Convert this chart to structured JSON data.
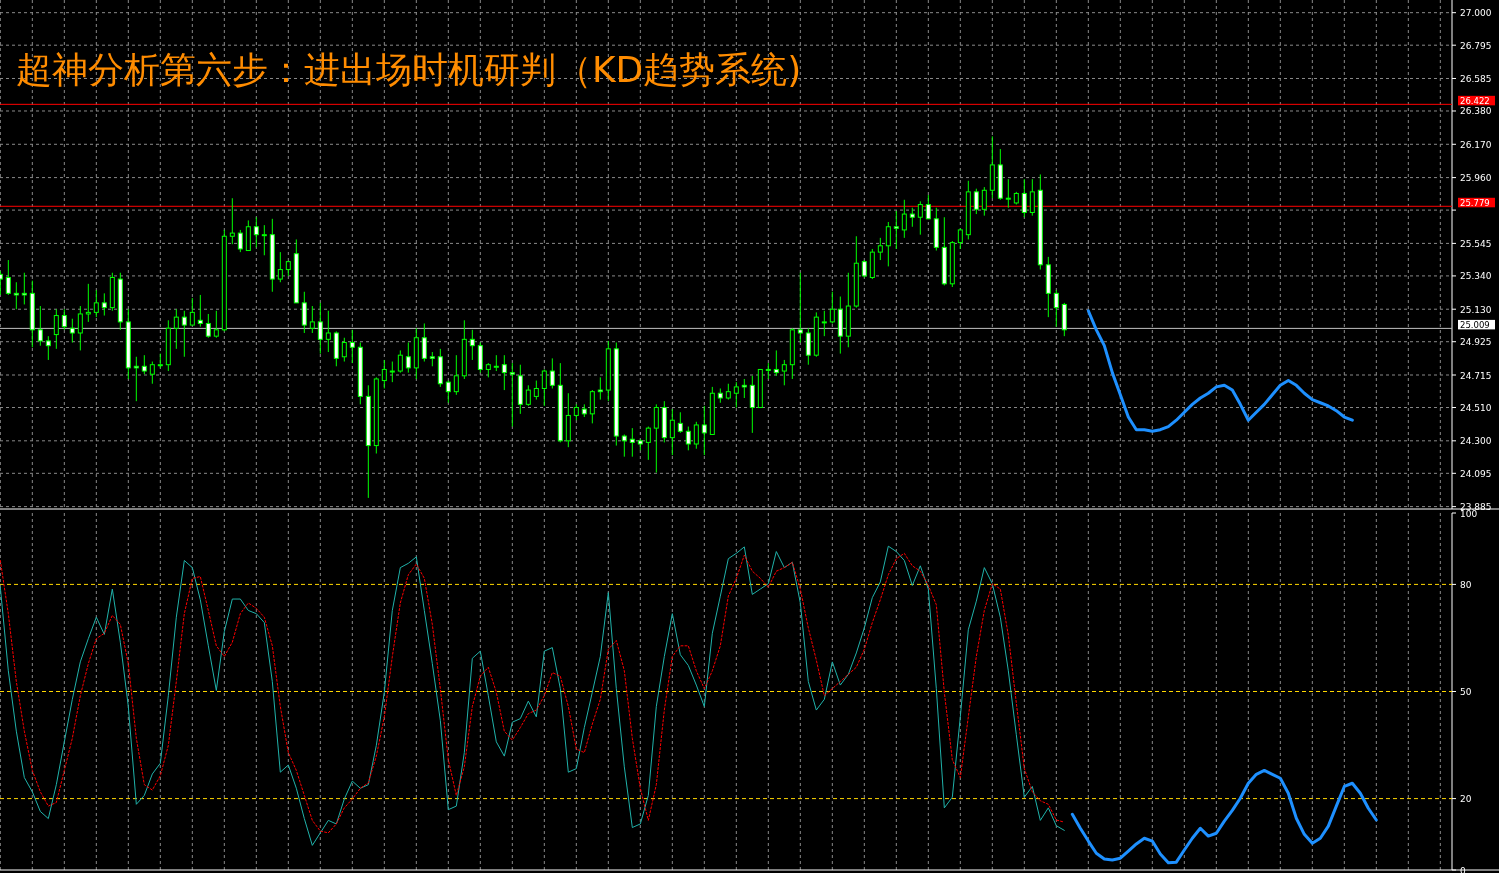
{
  "chart_data": [
    {
      "type": "candlestick",
      "title": "超神分析第六步：进出场时机研判（KD趋势系统)",
      "grid": true,
      "tick_labels": "y",
      "categories": [
        null,
        null,
        null,
        null,
        null,
        null,
        null,
        null,
        null,
        null,
        null,
        null,
        null,
        null,
        null,
        null,
        null,
        null,
        null,
        null,
        null,
        null,
        null,
        null,
        null,
        null,
        null,
        null,
        null,
        null,
        null,
        null,
        null,
        null,
        null,
        null,
        null,
        null,
        null,
        null,
        null,
        null,
        null,
        null,
        null,
        null,
        null,
        null,
        null,
        null,
        null,
        null,
        null,
        null,
        null,
        null,
        null,
        null,
        null,
        null,
        null,
        null,
        null,
        null,
        null,
        null,
        null,
        null,
        null,
        null,
        null,
        null,
        null,
        null,
        null,
        null,
        null,
        null,
        null,
        null,
        null,
        null,
        null,
        null,
        null,
        null,
        null,
        null,
        null,
        null,
        null,
        null,
        null,
        null,
        null,
        null,
        null,
        null,
        null,
        null,
        null,
        null,
        null,
        null,
        null,
        null,
        null,
        null,
        null,
        null,
        null,
        null,
        null,
        null,
        null,
        null,
        null,
        null,
        null,
        null,
        null,
        null,
        null,
        null,
        null,
        null,
        null,
        null,
        null,
        null,
        null,
        null,
        null,
        null,
        null,
        null,
        null,
        null,
        null,
        null,
        null,
        null,
        null,
        null,
        null,
        null,
        null,
        null,
        null,
        null,
        null,
        null,
        null,
        null,
        null,
        null,
        null,
        null,
        null,
        null,
        null,
        null,
        null,
        null,
        null,
        null,
        null,
        null,
        null,
        null,
        null,
        null,
        null,
        null,
        null,
        null,
        null,
        null,
        null,
        null,
        null,
        null
      ],
      "ylim": [
        23.87,
        27.08
      ],
      "yticks": [
        {
          "value": 27.0,
          "label": "27.000"
        },
        {
          "value": 26.795,
          "label": "26.795"
        },
        {
          "value": 26.585,
          "label": "26.585"
        },
        {
          "value": 26.38,
          "label": "26.380"
        },
        {
          "value": 26.17,
          "label": "26.170"
        },
        {
          "value": 25.96,
          "label": "25.960"
        },
        {
          "value": 25.755,
          "label": null
        },
        {
          "value": 25.545,
          "label": "25.545"
        },
        {
          "value": 25.34,
          "label": "25.340"
        },
        {
          "value": 25.13,
          "label": "25.130"
        },
        {
          "value": 24.925,
          "label": "24.925"
        },
        {
          "value": 24.715,
          "label": "24.715"
        },
        {
          "value": 24.51,
          "label": "24.510"
        },
        {
          "value": 24.3,
          "label": "24.300"
        },
        {
          "value": 24.095,
          "label": "24.095"
        },
        {
          "value": 23.885,
          "label": "23.885"
        }
      ],
      "ref_lines": [
        {
          "axis": "y",
          "value": 26.422,
          "label": "26.422",
          "color": "#ff0000"
        },
        {
          "axis": "y",
          "value": 25.779,
          "label": "25.779",
          "color": "#ff0000"
        },
        {
          "axis": "y",
          "value": 25.009,
          "label": "25.009",
          "color": "#c0c0c0"
        }
      ],
      "ohlc": [
        [
          25.35,
          25.37,
          25.22,
          25.32
        ],
        [
          25.33,
          25.44,
          25.22,
          25.23
        ],
        [
          25.23,
          25.3,
          25.13,
          25.22
        ],
        [
          25.23,
          25.36,
          25.16,
          25.22
        ],
        [
          25.23,
          25.31,
          24.89,
          25.0
        ],
        [
          25.0,
          25.15,
          24.9,
          24.93
        ],
        [
          24.93,
          24.96,
          24.81,
          24.9
        ],
        [
          24.97,
          25.13,
          24.88,
          25.09
        ],
        [
          25.09,
          25.13,
          25.0,
          25.02
        ],
        [
          25.01,
          25.07,
          24.92,
          24.98
        ],
        [
          24.98,
          25.15,
          24.87,
          25.1
        ],
        [
          25.1,
          25.29,
          25.05,
          25.11
        ],
        [
          25.11,
          25.25,
          25.08,
          25.17
        ],
        [
          25.17,
          25.23,
          25.09,
          25.14
        ],
        [
          25.14,
          25.36,
          25.12,
          25.33
        ],
        [
          25.32,
          25.36,
          25.0,
          25.05
        ],
        [
          25.05,
          25.13,
          24.69,
          24.76
        ],
        [
          24.77,
          24.83,
          24.55,
          24.76
        ],
        [
          24.77,
          24.84,
          24.72,
          24.74
        ],
        [
          24.72,
          24.8,
          24.66,
          24.78
        ],
        [
          24.78,
          24.85,
          24.76,
          24.78
        ],
        [
          24.78,
          25.06,
          24.74,
          25.01
        ],
        [
          25.01,
          25.13,
          24.88,
          25.08
        ],
        [
          25.08,
          25.12,
          24.83,
          25.03
        ],
        [
          25.03,
          25.2,
          25.03,
          25.11
        ],
        [
          25.06,
          25.22,
          25.02,
          25.04
        ],
        [
          25.04,
          25.1,
          24.95,
          24.96
        ],
        [
          24.96,
          25.12,
          24.95,
          25.0
        ],
        [
          25.0,
          25.63,
          24.99,
          25.59
        ],
        [
          25.59,
          25.83,
          25.54,
          25.61
        ],
        [
          25.61,
          25.63,
          25.49,
          25.51
        ],
        [
          25.5,
          25.69,
          25.5,
          25.65
        ],
        [
          25.65,
          25.71,
          25.52,
          25.6
        ],
        [
          25.6,
          25.66,
          25.47,
          25.6
        ],
        [
          25.6,
          25.7,
          25.24,
          25.32
        ],
        [
          25.32,
          25.49,
          25.3,
          25.38
        ],
        [
          25.38,
          25.43,
          25.34,
          25.43
        ],
        [
          25.48,
          25.57,
          25.17,
          25.17
        ],
        [
          25.17,
          25.24,
          24.98,
          25.03
        ],
        [
          25.01,
          25.15,
          24.98,
          25.05
        ],
        [
          25.05,
          25.17,
          24.85,
          24.94
        ],
        [
          24.94,
          25.12,
          24.86,
          24.98
        ],
        [
          24.98,
          24.99,
          24.77,
          24.82
        ],
        [
          24.83,
          24.95,
          24.8,
          24.92
        ],
        [
          24.92,
          25.0,
          24.79,
          24.89
        ],
        [
          24.89,
          24.92,
          24.53,
          24.58
        ],
        [
          24.58,
          24.65,
          23.94,
          24.27
        ],
        [
          24.27,
          24.7,
          24.22,
          24.69
        ],
        [
          24.68,
          24.81,
          24.63,
          24.75
        ],
        [
          24.74,
          24.8,
          24.67,
          24.74
        ],
        [
          24.74,
          24.87,
          24.73,
          24.84
        ],
        [
          24.83,
          24.92,
          24.73,
          24.76
        ],
        [
          24.76,
          25.01,
          24.69,
          24.95
        ],
        [
          24.95,
          25.04,
          24.8,
          24.82
        ],
        [
          24.83,
          24.86,
          24.77,
          24.82
        ],
        [
          24.83,
          24.88,
          24.64,
          24.66
        ],
        [
          24.67,
          24.68,
          24.54,
          24.61
        ],
        [
          24.61,
          24.84,
          24.59,
          24.71
        ],
        [
          24.71,
          25.06,
          24.69,
          24.94
        ],
        [
          24.94,
          25.0,
          24.81,
          24.9
        ],
        [
          24.9,
          24.92,
          24.73,
          24.75
        ],
        [
          24.75,
          24.79,
          24.7,
          24.78
        ],
        [
          24.77,
          24.84,
          24.74,
          24.77
        ],
        [
          24.78,
          24.84,
          24.62,
          24.73
        ],
        [
          24.73,
          24.79,
          24.39,
          24.72
        ],
        [
          24.71,
          24.78,
          24.47,
          24.53
        ],
        [
          24.53,
          24.65,
          24.52,
          24.62
        ],
        [
          24.58,
          24.68,
          24.56,
          24.63
        ],
        [
          24.63,
          24.75,
          24.52,
          24.74
        ],
        [
          24.74,
          24.82,
          24.63,
          24.65
        ],
        [
          24.65,
          24.79,
          24.29,
          24.3
        ],
        [
          24.3,
          24.6,
          24.26,
          24.46
        ],
        [
          24.46,
          24.53,
          24.43,
          24.51
        ],
        [
          24.5,
          24.53,
          24.45,
          24.47
        ],
        [
          24.47,
          24.62,
          24.41,
          24.61
        ],
        [
          24.62,
          24.7,
          24.56,
          24.61
        ],
        [
          24.62,
          24.93,
          24.55,
          24.88
        ],
        [
          24.88,
          24.92,
          24.27,
          24.33
        ],
        [
          24.33,
          24.34,
          24.2,
          24.3
        ],
        [
          24.31,
          24.38,
          24.2,
          24.29
        ],
        [
          24.3,
          24.31,
          24.24,
          24.28
        ],
        [
          24.29,
          24.39,
          24.18,
          24.38
        ],
        [
          24.38,
          24.53,
          24.1,
          24.51
        ],
        [
          24.51,
          24.55,
          24.29,
          24.32
        ],
        [
          24.32,
          24.5,
          24.21,
          24.43
        ],
        [
          24.41,
          24.48,
          24.35,
          24.36
        ],
        [
          24.36,
          24.39,
          24.24,
          24.28
        ],
        [
          24.28,
          24.42,
          24.25,
          24.4
        ],
        [
          24.4,
          24.52,
          24.21,
          24.35
        ],
        [
          24.34,
          24.64,
          24.34,
          24.6
        ],
        [
          24.6,
          24.63,
          24.54,
          24.57
        ],
        [
          24.57,
          24.66,
          24.56,
          24.61
        ],
        [
          24.6,
          24.67,
          24.51,
          24.64
        ],
        [
          24.65,
          24.69,
          24.57,
          24.64
        ],
        [
          24.65,
          24.71,
          24.35,
          24.51
        ],
        [
          24.51,
          24.75,
          24.51,
          24.75
        ],
        [
          24.75,
          24.79,
          24.69,
          24.75
        ],
        [
          24.75,
          24.87,
          24.71,
          24.73
        ],
        [
          24.74,
          24.81,
          24.65,
          24.78
        ],
        [
          24.78,
          25.01,
          24.69,
          25.0
        ],
        [
          25.0,
          25.36,
          24.92,
          24.98
        ],
        [
          24.98,
          25.01,
          24.78,
          24.84
        ],
        [
          24.84,
          25.11,
          24.83,
          25.08
        ],
        [
          25.05,
          25.12,
          24.96,
          25.05
        ],
        [
          25.05,
          25.24,
          25.04,
          25.13
        ],
        [
          25.13,
          25.21,
          24.85,
          24.96
        ],
        [
          24.96,
          25.36,
          24.89,
          25.15
        ],
        [
          25.15,
          25.59,
          25.14,
          25.42
        ],
        [
          25.43,
          25.44,
          25.33,
          25.34
        ],
        [
          25.33,
          25.51,
          25.32,
          25.49
        ],
        [
          25.49,
          25.58,
          25.44,
          25.53
        ],
        [
          25.53,
          25.68,
          25.4,
          25.65
        ],
        [
          25.65,
          25.75,
          25.51,
          25.64
        ],
        [
          25.63,
          25.82,
          25.58,
          25.73
        ],
        [
          25.73,
          25.77,
          25.65,
          25.71
        ],
        [
          25.71,
          25.81,
          25.6,
          25.79
        ],
        [
          25.79,
          25.85,
          25.7,
          25.7
        ],
        [
          25.7,
          25.77,
          25.5,
          25.52
        ],
        [
          25.52,
          25.71,
          25.28,
          25.29
        ],
        [
          25.29,
          25.56,
          25.27,
          25.55
        ],
        [
          25.55,
          25.64,
          25.51,
          25.63
        ],
        [
          25.6,
          25.94,
          25.57,
          25.87
        ],
        [
          25.87,
          25.89,
          25.73,
          25.76
        ],
        [
          25.76,
          25.9,
          25.72,
          25.88
        ],
        [
          25.88,
          26.22,
          25.83,
          26.04
        ],
        [
          26.04,
          26.14,
          25.82,
          25.83
        ],
        [
          25.83,
          25.95,
          25.77,
          25.83
        ],
        [
          25.8,
          25.87,
          25.79,
          25.86
        ],
        [
          25.86,
          25.95,
          25.71,
          25.74
        ],
        [
          25.74,
          25.95,
          25.72,
          25.87
        ],
        [
          25.88,
          25.98,
          25.38,
          25.41
        ],
        [
          25.41,
          25.46,
          25.08,
          25.23
        ],
        [
          25.23,
          25.25,
          25.02,
          25.14
        ],
        [
          25.16,
          25.17,
          24.96,
          25.0
        ],
        null,
        null,
        null,
        null,
        null,
        null,
        null,
        null,
        null,
        null,
        null,
        null,
        null,
        null,
        null,
        null,
        null,
        null,
        null,
        null,
        null,
        null,
        null,
        null,
        null,
        null,
        null,
        null,
        null,
        null,
        null,
        null,
        null,
        null,
        null,
        null,
        null,
        null,
        null,
        null,
        null,
        null,
        null,
        null,
        null,
        null,
        null,
        null
      ],
      "series": [
        {
          "type": "line",
          "color": "#1e90ff",
          "values": [
            null,
            null,
            null,
            null,
            null,
            null,
            null,
            null,
            null,
            null,
            null,
            null,
            null,
            null,
            null,
            null,
            null,
            null,
            null,
            null,
            null,
            null,
            null,
            null,
            null,
            null,
            null,
            null,
            null,
            null,
            null,
            null,
            null,
            null,
            null,
            null,
            null,
            null,
            null,
            null,
            null,
            null,
            null,
            null,
            null,
            null,
            null,
            null,
            null,
            null,
            null,
            null,
            null,
            null,
            null,
            null,
            null,
            null,
            null,
            null,
            null,
            null,
            null,
            null,
            null,
            null,
            null,
            null,
            null,
            null,
            null,
            null,
            null,
            null,
            null,
            null,
            null,
            null,
            null,
            null,
            null,
            null,
            null,
            null,
            null,
            null,
            null,
            null,
            null,
            null,
            null,
            null,
            null,
            null,
            null,
            null,
            null,
            null,
            null,
            null,
            null,
            null,
            null,
            null,
            null,
            null,
            null,
            null,
            null,
            null,
            null,
            null,
            null,
            null,
            null,
            null,
            null,
            null,
            null,
            null,
            null,
            null,
            null,
            null,
            null,
            null,
            null,
            null,
            null,
            null,
            null,
            null,
            null,
            null,
            null,
            null,
            25.12,
            25.0,
            24.9,
            24.73,
            24.59,
            24.45,
            24.37,
            24.37,
            24.36,
            24.37,
            24.39,
            24.43,
            24.48,
            24.53,
            24.57,
            24.6,
            24.64,
            24.65,
            24.62,
            24.53,
            24.43,
            24.48,
            24.53,
            24.59,
            24.65,
            24.68,
            24.65,
            24.6,
            24.56,
            24.54,
            24.52,
            24.49,
            24.45,
            24.43,
            null,
            null,
            null,
            null,
            null,
            null,
            null,
            null,
            null,
            null,
            null,
            null
          ]
        }
      ]
    },
    {
      "type": "line",
      "grid": "x",
      "tick_labels": "y",
      "categories": [
        null,
        null,
        null,
        null,
        null,
        null,
        null,
        null,
        null,
        null,
        null,
        null,
        null,
        null,
        null,
        null,
        null,
        null,
        null,
        null,
        null,
        null,
        null,
        null,
        null,
        null,
        null,
        null,
        null,
        null,
        null,
        null,
        null,
        null,
        null,
        null,
        null,
        null,
        null,
        null,
        null,
        null,
        null,
        null,
        null,
        null,
        null,
        null,
        null,
        null,
        null,
        null,
        null,
        null,
        null,
        null,
        null,
        null,
        null,
        null,
        null,
        null,
        null,
        null,
        null,
        null,
        null,
        null,
        null,
        null,
        null,
        null,
        null,
        null,
        null,
        null,
        null,
        null,
        null,
        null,
        null,
        null,
        null,
        null,
        null,
        null,
        null,
        null,
        null,
        null,
        null,
        null,
        null,
        null,
        null,
        null,
        null,
        null,
        null,
        null,
        null,
        null,
        null,
        null,
        null,
        null,
        null,
        null,
        null,
        null,
        null,
        null,
        null,
        null,
        null,
        null,
        null,
        null,
        null,
        null,
        null,
        null,
        null,
        null,
        null,
        null,
        null,
        null,
        null,
        null,
        null,
        null,
        null,
        null,
        null,
        null,
        null,
        null,
        null,
        null,
        null,
        null,
        null,
        null,
        null,
        null,
        null,
        null,
        null,
        null,
        null,
        null,
        null,
        null,
        null,
        null,
        null,
        null,
        null,
        null,
        null,
        null,
        null,
        null,
        null,
        null,
        null,
        null,
        null,
        null,
        null,
        null,
        null,
        null,
        null,
        null,
        null,
        null,
        null,
        null,
        null,
        null
      ],
      "ylim": [
        0,
        100
      ],
      "yticks": [
        0,
        20,
        50,
        80,
        100
      ],
      "ref_lines": [
        {
          "axis": "y",
          "value": 20,
          "color": "#ffd700",
          "line_style": "dashed"
        },
        {
          "axis": "y",
          "value": 50,
          "color": "#ffd700",
          "line_style": "dashed"
        },
        {
          "axis": "y",
          "value": 80,
          "color": "#ffd700",
          "line_style": "dashed"
        }
      ],
      "series": [
        {
          "color": "#20b2aa",
          "line_style": "solid",
          "values": [
            79.2,
            55.8,
            38.9,
            25.9,
            21.9,
            16.4,
            14.4,
            23.9,
            35.9,
            47.8,
            58.3,
            64.8,
            70.8,
            66.0,
            78.7,
            63.8,
            45.8,
            18.4,
            20.9,
            26.9,
            29.9,
            48.8,
            70.8,
            86.7,
            84.7,
            75.7,
            62.8,
            50.3,
            66.8,
            75.9,
            75.9,
            72.7,
            71.8,
            69.3,
            52.8,
            27.4,
            29.4,
            22.9,
            14.4,
            6.9,
            10.4,
            13.9,
            12.9,
            19.9,
            24.9,
            22.9,
            23.9,
            34.9,
            49.8,
            72.7,
            84.7,
            85.9,
            87.7,
            72.7,
            57.8,
            41.9,
            16.9,
            17.9,
            32.9,
            59.3,
            61.3,
            48.8,
            35.9,
            31.9,
            41.4,
            42.4,
            47.3,
            42.9,
            61.3,
            62.3,
            50.8,
            27.4,
            28.4,
            39.9,
            49.8,
            59.8,
            77.7,
            50.8,
            28.9,
            11.9,
            12.9,
            20.9,
            45.8,
            59.8,
            71.8,
            60.3,
            57.3,
            51.8,
            45.8,
            66.3,
            76.7,
            87.2,
            88.7,
            90.5,
            77.2,
            78.7,
            80.2,
            89.2,
            84.7,
            86.2,
            74.8,
            52.8,
            44.8,
            47.8,
            58.3,
            51.8,
            54.8,
            60.8,
            67.8,
            76.3,
            80.7,
            90.7,
            89.2,
            86.7,
            79.7,
            85.2,
            78.7,
            50.8,
            17.4,
            20.4,
            42.9,
            67.3,
            75.3,
            84.7,
            80.2,
            70.8,
            55.8,
            37.9,
            20.4,
            23.4,
            13.9,
            17.4,
            12.4,
            11.1,
            null,
            null,
            null,
            null,
            null,
            null,
            null,
            null,
            null,
            null,
            null,
            null,
            null,
            null,
            null,
            null,
            null,
            null,
            null,
            null,
            null,
            null,
            null,
            null,
            null,
            null,
            null,
            null,
            null,
            null,
            null,
            null,
            null,
            null,
            null,
            null,
            null,
            null,
            null,
            null,
            null,
            null,
            null,
            null,
            null,
            null,
            null,
            null
          ]
        },
        {
          "color": "#ff0000",
          "line_style": "dotted",
          "values": [
            86.7,
            71.8,
            52.8,
            38.9,
            27.9,
            21.9,
            17.9,
            18.9,
            27.9,
            36.9,
            48.8,
            57.8,
            64.8,
            66.3,
            71.3,
            68.8,
            57.8,
            36.9,
            23.9,
            22.4,
            26.4,
            34.9,
            52.8,
            71.8,
            81.7,
            82.2,
            72.7,
            62.8,
            59.8,
            63.8,
            71.8,
            74.8,
            73.3,
            70.8,
            62.8,
            45.8,
            32.9,
            27.9,
            20.9,
            13.9,
            10.9,
            10.4,
            12.9,
            17.4,
            19.9,
            22.9,
            24.4,
            31.9,
            42.9,
            59.8,
            74.8,
            82.7,
            85.7,
            81.7,
            68.8,
            50.8,
            30.9,
            20.9,
            28.9,
            45.8,
            54.3,
            56.8,
            49.8,
            38.9,
            36.4,
            39.9,
            43.8,
            44.8,
            48.8,
            55.3,
            54.3,
            45.8,
            33.9,
            32.9,
            40.9,
            47.8,
            61.8,
            64.3,
            55.8,
            36.9,
            22.9,
            13.9,
            23.9,
            44.8,
            59.8,
            62.8,
            62.8,
            55.8,
            50.8,
            55.8,
            62.8,
            76.7,
            81.7,
            88.2,
            83.7,
            81.7,
            79.2,
            83.7,
            84.7,
            86.2,
            78.7,
            67.8,
            58.8,
            48.8,
            50.8,
            52.8,
            54.8,
            56.8,
            61.8,
            69.3,
            75.7,
            82.7,
            87.2,
            88.7,
            85.2,
            83.7,
            79.7,
            74.3,
            49.8,
            30.9,
            25.9,
            42.9,
            59.8,
            72.7,
            80.2,
            78.7,
            65.8,
            46.8,
            28.4,
            21.9,
            19.4,
            18.4,
            14.0,
            13.4,
            null,
            null,
            null,
            null,
            null,
            null,
            null,
            null,
            null,
            null,
            null,
            null,
            null,
            null,
            null,
            null,
            null,
            null,
            null,
            null,
            null,
            null,
            null,
            null,
            null,
            null,
            null,
            null,
            null,
            null,
            null,
            null,
            null,
            null,
            null,
            null,
            null,
            null,
            null,
            null,
            null,
            null,
            null,
            null,
            null,
            null,
            null,
            null
          ]
        },
        {
          "color": "#1e90ff",
          "values": [
            null,
            null,
            null,
            null,
            null,
            null,
            null,
            null,
            null,
            null,
            null,
            null,
            null,
            null,
            null,
            null,
            null,
            null,
            null,
            null,
            null,
            null,
            null,
            null,
            null,
            null,
            null,
            null,
            null,
            null,
            null,
            null,
            null,
            null,
            null,
            null,
            null,
            null,
            null,
            null,
            null,
            null,
            null,
            null,
            null,
            null,
            null,
            null,
            null,
            null,
            null,
            null,
            null,
            null,
            null,
            null,
            null,
            null,
            null,
            null,
            null,
            null,
            null,
            null,
            null,
            null,
            null,
            null,
            null,
            null,
            null,
            null,
            null,
            null,
            null,
            null,
            null,
            null,
            null,
            null,
            null,
            null,
            null,
            null,
            null,
            null,
            null,
            null,
            null,
            null,
            null,
            null,
            null,
            null,
            null,
            null,
            null,
            null,
            null,
            null,
            null,
            null,
            null,
            null,
            null,
            null,
            null,
            null,
            null,
            null,
            null,
            null,
            null,
            null,
            null,
            null,
            null,
            null,
            null,
            null,
            null,
            null,
            null,
            null,
            null,
            null,
            null,
            null,
            null,
            null,
            null,
            null,
            null,
            null,
            15.6,
            11.7,
            8.1,
            4.7,
            3.1,
            2.8,
            3.3,
            5.3,
            7.3,
            8.9,
            8.1,
            4.5,
            2.0,
            2.2,
            5.6,
            8.9,
            11.7,
            9.5,
            10.3,
            13.7,
            16.7,
            20.1,
            24.3,
            26.8,
            27.9,
            26.8,
            25.7,
            21.5,
            14.5,
            10.0,
            7.5,
            8.9,
            12.3,
            17.9,
            23.4,
            24.3,
            21.5,
            17.3,
            14.0,
            null,
            null,
            null,
            null,
            null,
            null,
            null,
            null,
            null
          ]
        }
      ]
    }
  ]
}
